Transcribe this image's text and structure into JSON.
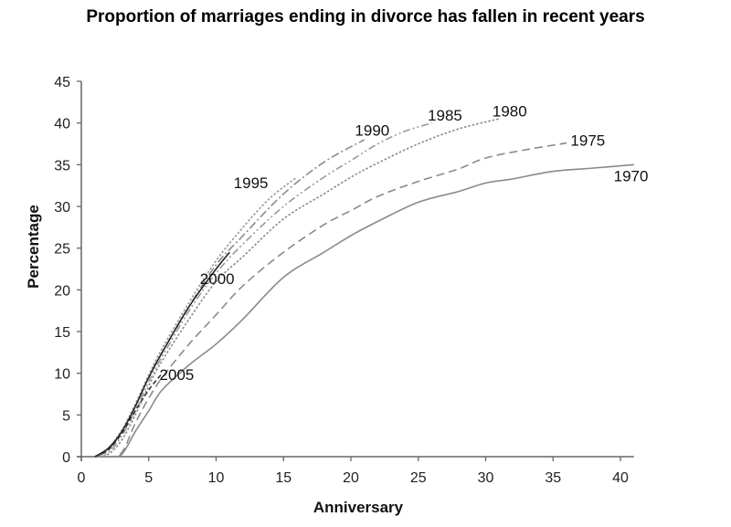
{
  "chart_data": {
    "type": "line",
    "title": "Proportion of marriages ending in divorce has fallen in recent years",
    "xlabel": "Anniversary",
    "ylabel": "Percentage",
    "xlim": [
      0,
      41
    ],
    "ylim": [
      0,
      45
    ],
    "xticks": [
      0,
      5,
      10,
      15,
      20,
      25,
      30,
      35,
      40
    ],
    "yticks": [
      0,
      5,
      10,
      15,
      20,
      25,
      30,
      35,
      40,
      45
    ],
    "grid": false,
    "legend": "inline labels",
    "series": [
      {
        "name": "1970",
        "style": "solid",
        "color": "#8a8a8a",
        "x": [
          1,
          2,
          3,
          4,
          5,
          6,
          8,
          10,
          12,
          15,
          18,
          20,
          22,
          25,
          28,
          30,
          32,
          35,
          38,
          41
        ],
        "y": [
          0,
          0,
          0.3,
          3,
          5.5,
          8,
          11,
          13.5,
          16.5,
          21.5,
          24.5,
          26.5,
          28.2,
          30.5,
          31.8,
          32.8,
          33.3,
          34.2,
          34.6,
          35
        ]
      },
      {
        "name": "1975",
        "style": "longdash",
        "color": "#8a8a8a",
        "x": [
          1,
          2,
          3,
          4,
          5,
          6,
          8,
          10,
          12,
          15,
          18,
          20,
          22,
          25,
          28,
          30,
          33,
          36
        ],
        "y": [
          0,
          0,
          0.5,
          4,
          7,
          9.5,
          13.5,
          17,
          20.5,
          24.5,
          27.8,
          29.5,
          31.2,
          33,
          34.5,
          35.8,
          36.8,
          37.6
        ]
      },
      {
        "name": "1980",
        "style": "dotted",
        "color": "#8a8a8a",
        "x": [
          1,
          2,
          3,
          4,
          5,
          6,
          8,
          10,
          12,
          15,
          18,
          20,
          22,
          25,
          28,
          31
        ],
        "y": [
          0,
          0.3,
          2,
          5,
          8.5,
          11.5,
          16.5,
          21,
          24,
          28.5,
          31.5,
          33.5,
          35.2,
          37.5,
          39.3,
          40.5
        ]
      },
      {
        "name": "1985",
        "style": "dashdotdot",
        "color": "#9a9a9a",
        "x": [
          1,
          2,
          3,
          4,
          5,
          6,
          8,
          10,
          12,
          15,
          18,
          20,
          22,
          24,
          26
        ],
        "y": [
          0,
          0.5,
          2.5,
          5.5,
          9,
          12,
          17.5,
          22,
          25.5,
          30,
          33.5,
          35.5,
          37.5,
          39,
          40
        ]
      },
      {
        "name": "1990",
        "style": "dashdot",
        "color": "#8a8a8a",
        "x": [
          1,
          2,
          3,
          4,
          5,
          6,
          8,
          10,
          12,
          15,
          18,
          21
        ],
        "y": [
          0,
          0.8,
          3,
          6,
          9.5,
          12.5,
          18,
          23,
          26.5,
          31.5,
          35.3,
          38
        ]
      },
      {
        "name": "1995",
        "style": "dotted",
        "color": "#9a9a9a",
        "x": [
          1,
          2,
          3,
          4,
          5,
          6,
          8,
          10,
          12,
          14,
          16
        ],
        "y": [
          0,
          1,
          3.2,
          6.3,
          9.8,
          13,
          18.5,
          23.5,
          27.5,
          31,
          33.5
        ]
      },
      {
        "name": "2000",
        "style": "solid",
        "color": "#222222",
        "x": [
          1,
          2,
          3,
          4,
          5,
          6,
          8,
          10,
          11
        ],
        "y": [
          0,
          1,
          3,
          6,
          9.5,
          12.5,
          18,
          22.5,
          24.5
        ]
      },
      {
        "name": "2005",
        "style": "dashed",
        "color": "#333333",
        "x": [
          1,
          2,
          3,
          4,
          5,
          6
        ],
        "y": [
          0,
          0.8,
          2.8,
          5.5,
          8,
          10
        ]
      }
    ],
    "annotations": [
      {
        "text": "1970",
        "x": 39.5,
        "y": 33
      },
      {
        "text": "1975",
        "x": 36.3,
        "y": 37.3
      },
      {
        "text": "1980",
        "x": 30.5,
        "y": 40.8
      },
      {
        "text": "1985",
        "x": 25.7,
        "y": 40.3
      },
      {
        "text": "1990",
        "x": 20.3,
        "y": 38.5
      },
      {
        "text": "1995",
        "x": 11.3,
        "y": 32.2
      },
      {
        "text": "2000",
        "x": 8.8,
        "y": 20.7
      },
      {
        "text": "2005",
        "x": 5.8,
        "y": 9.2
      }
    ]
  }
}
